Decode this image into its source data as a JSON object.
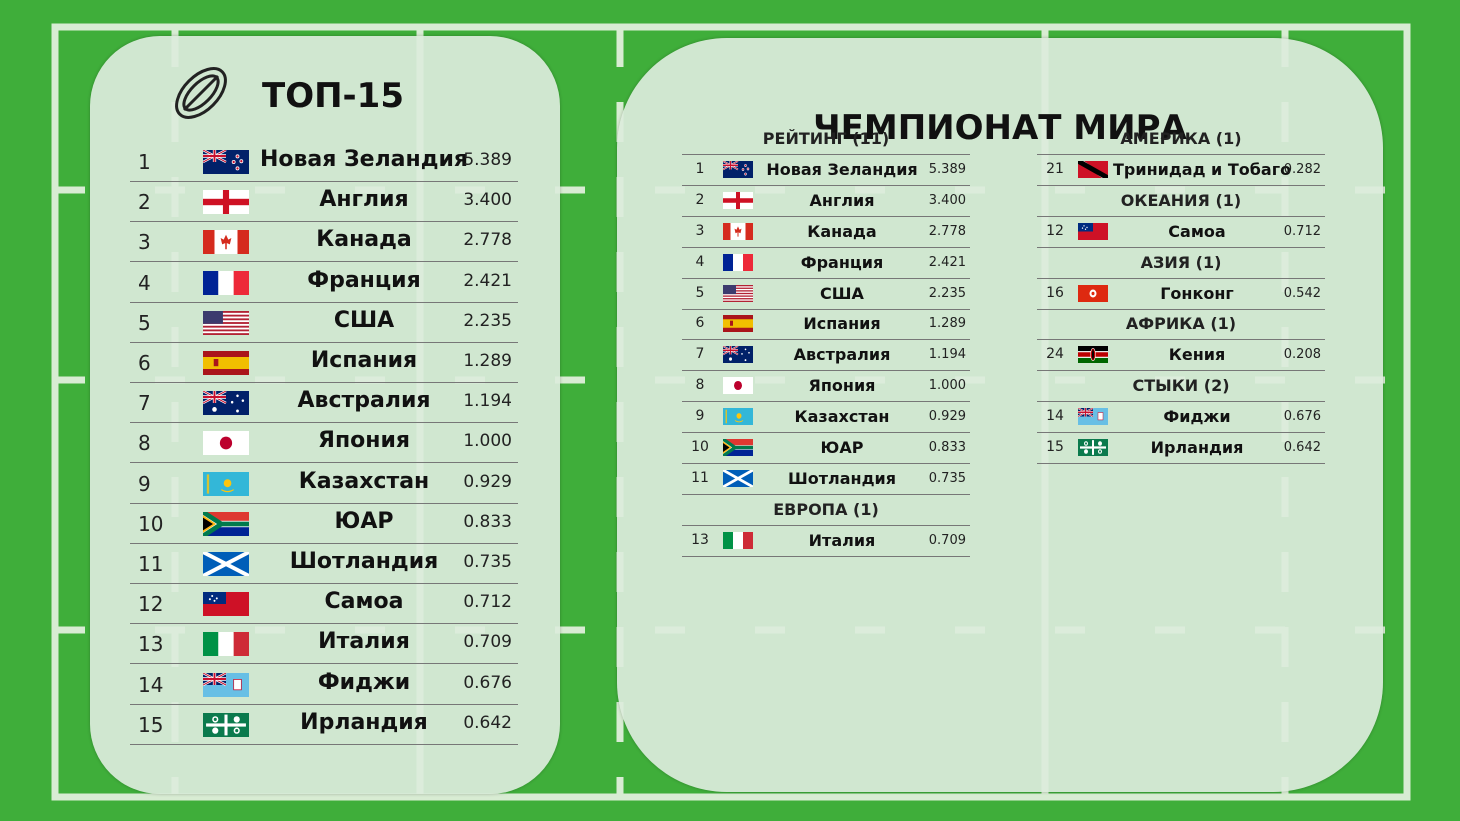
{
  "colors": {
    "background": "#3fae3a",
    "panel": "#dcecdc"
  },
  "left": {
    "title": "ТОП-15",
    "icon": "rugby-ball-icon",
    "rows": [
      {
        "rank": "1",
        "flag": "nz",
        "name": "Новая Зеландия",
        "value": "5.389"
      },
      {
        "rank": "2",
        "flag": "eng",
        "name": "Англия",
        "value": "3.400"
      },
      {
        "rank": "3",
        "flag": "ca",
        "name": "Канада",
        "value": "2.778"
      },
      {
        "rank": "4",
        "flag": "fr",
        "name": "Франция",
        "value": "2.421"
      },
      {
        "rank": "5",
        "flag": "us",
        "name": "США",
        "value": "2.235"
      },
      {
        "rank": "6",
        "flag": "es",
        "name": "Испания",
        "value": "1.289"
      },
      {
        "rank": "7",
        "flag": "au",
        "name": "Австралия",
        "value": "1.194"
      },
      {
        "rank": "8",
        "flag": "jp",
        "name": "Япония",
        "value": "1.000"
      },
      {
        "rank": "9",
        "flag": "kz",
        "name": "Казахстан",
        "value": "0.929"
      },
      {
        "rank": "10",
        "flag": "za",
        "name": "ЮАР",
        "value": "0.833"
      },
      {
        "rank": "11",
        "flag": "sco",
        "name": "Шотландия",
        "value": "0.735"
      },
      {
        "rank": "12",
        "flag": "ws",
        "name": "Самоа",
        "value": "0.712"
      },
      {
        "rank": "13",
        "flag": "it",
        "name": "Италия",
        "value": "0.709"
      },
      {
        "rank": "14",
        "flag": "fj",
        "name": "Фиджи",
        "value": "0.676"
      },
      {
        "rank": "15",
        "flag": "ie",
        "name": "Ирландия",
        "value": "0.642"
      }
    ]
  },
  "right": {
    "title": "ЧЕМПИОНАТ МИРА",
    "col1": [
      {
        "type": "head",
        "label": "РЕЙТИНГ (11)"
      },
      {
        "type": "row",
        "rank": "1",
        "flag": "nz",
        "name": "Новая Зеландия",
        "value": "5.389"
      },
      {
        "type": "row",
        "rank": "2",
        "flag": "eng",
        "name": "Англия",
        "value": "3.400"
      },
      {
        "type": "row",
        "rank": "3",
        "flag": "ca",
        "name": "Канада",
        "value": "2.778"
      },
      {
        "type": "row",
        "rank": "4",
        "flag": "fr",
        "name": "Франция",
        "value": "2.421"
      },
      {
        "type": "row",
        "rank": "5",
        "flag": "us",
        "name": "США",
        "value": "2.235"
      },
      {
        "type": "row",
        "rank": "6",
        "flag": "es",
        "name": "Испания",
        "value": "1.289"
      },
      {
        "type": "row",
        "rank": "7",
        "flag": "au",
        "name": "Австралия",
        "value": "1.194"
      },
      {
        "type": "row",
        "rank": "8",
        "flag": "jp",
        "name": "Япония",
        "value": "1.000"
      },
      {
        "type": "row",
        "rank": "9",
        "flag": "kz",
        "name": "Казахстан",
        "value": "0.929"
      },
      {
        "type": "row",
        "rank": "10",
        "flag": "za",
        "name": "ЮАР",
        "value": "0.833"
      },
      {
        "type": "row",
        "rank": "11",
        "flag": "sco",
        "name": "Шотландия",
        "value": "0.735"
      },
      {
        "type": "head",
        "label": "ЕВРОПА (1)"
      },
      {
        "type": "row",
        "rank": "13",
        "flag": "it",
        "name": "Италия",
        "value": "0.709"
      }
    ],
    "col2": [
      {
        "type": "head",
        "label": "АМЕРИКА (1)"
      },
      {
        "type": "row",
        "rank": "21",
        "flag": "tt",
        "name": "Тринидад и Тобаго",
        "value": "0.282"
      },
      {
        "type": "head",
        "label": "ОКЕАНИЯ (1)"
      },
      {
        "type": "row",
        "rank": "12",
        "flag": "ws",
        "name": "Самоа",
        "value": "0.712"
      },
      {
        "type": "head",
        "label": "АЗИЯ (1)"
      },
      {
        "type": "row",
        "rank": "16",
        "flag": "hk",
        "name": "Гонконг",
        "value": "0.542"
      },
      {
        "type": "head",
        "label": "АФРИКА (1)"
      },
      {
        "type": "row",
        "rank": "24",
        "flag": "ke",
        "name": "Кения",
        "value": "0.208"
      },
      {
        "type": "head",
        "label": "СТЫКИ (2)"
      },
      {
        "type": "row",
        "rank": "14",
        "flag": "fj",
        "name": "Фиджи",
        "value": "0.676"
      },
      {
        "type": "row",
        "rank": "15",
        "flag": "ie",
        "name": "Ирландия",
        "value": "0.642"
      }
    ]
  }
}
